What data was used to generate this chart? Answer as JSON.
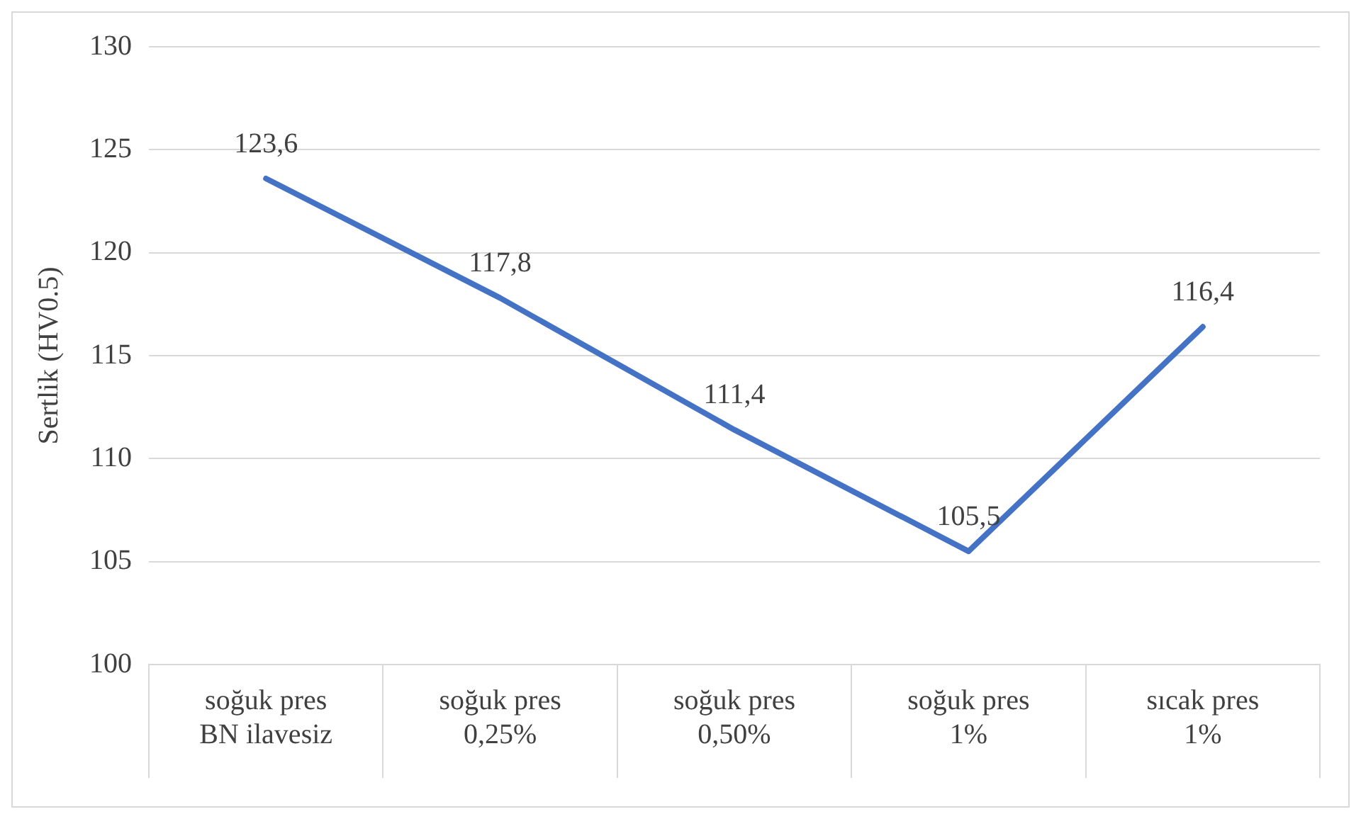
{
  "chart_data": {
    "type": "line",
    "ylabel": "Sertlik (HV0.5)",
    "categories": [
      "soğuk pres\nBN ilavesiz",
      "soğuk pres\n0,25%",
      "soğuk pres\n0,50%",
      "soğuk pres\n1%",
      "sıcak pres\n1%"
    ],
    "series": [
      {
        "color": "#4472c4",
        "values": [
          123.6,
          117.8,
          111.4,
          105.5,
          116.4
        ],
        "value_labels": [
          "123,6",
          "117,8",
          "111,4",
          "105,5",
          "116,4"
        ]
      }
    ],
    "ylim": [
      100,
      130
    ],
    "yticks": [
      100,
      105,
      110,
      115,
      120,
      125,
      130
    ],
    "grid": "y",
    "legend": false,
    "marker": "none",
    "line_style": "solid"
  }
}
